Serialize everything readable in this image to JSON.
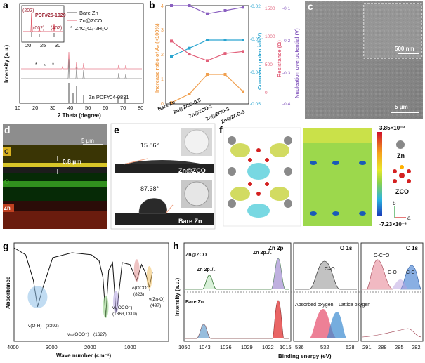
{
  "panel_letters": {
    "a": "a",
    "b": "b",
    "c": "c",
    "d": "d",
    "e": "e",
    "f": "f",
    "g": "g",
    "h": "h"
  },
  "panel_a": {
    "xlabel": "2 Theta (degree)",
    "ylabel": "Intensity (a.u.)",
    "xticks": [
      "10",
      "20",
      "30",
      "40",
      "50",
      "60",
      "70",
      "80"
    ],
    "legend": [
      "Bare Zn",
      "Zn@ZCO",
      "ZnC₂O₄·2H₂O"
    ],
    "legend_marker": "*",
    "ref_label": "Zn PDF#04-0831",
    "inset_pdf": "PDF#25-1029",
    "inset_peaks": [
      "(202)",
      "(002)",
      "(402)"
    ],
    "inset_ticks": [
      "20",
      "25",
      "30"
    ]
  },
  "panel_b": {
    "ylabel_left": "Increase ratio of Aₑ (×100%)",
    "ylabel_right1": "Corrosion potential (V)",
    "ylabel_right2": "Resistance (Ω)",
    "ylabel_right3": "Nucleation overpotential (V)",
    "left_ticks": [
      "0",
      "1",
      "2",
      "3",
      "4"
    ],
    "r1_ticks": [
      "-0.02",
      "-0.03",
      "-0.04",
      "-0.05"
    ],
    "r2_ticks": [
      "1500",
      "1000",
      "500",
      "0"
    ],
    "r3_ticks": [
      "-0.1",
      "-0.2",
      "-0.3",
      "-0.4"
    ],
    "categories": [
      "Bare Zn",
      "Zn@ZCO-0.5",
      "Zn@ZCO-1",
      "Zn@ZCO-3",
      "Zn@ZCO-5"
    ]
  },
  "panel_c": {
    "scale_inset": "500 nm",
    "scale_main": "5 μm"
  },
  "panel_d": {
    "scale": "5 μm",
    "thickness": "0.8 μm",
    "elements": [
      "C",
      "O",
      "Zn"
    ]
  },
  "panel_e": {
    "angle_top": "15.86°",
    "label_top": "Zn@ZCO",
    "angle_bottom": "87.38°",
    "label_bottom": "Bare Zn"
  },
  "panel_f": {
    "max": "3.85×10⁻³",
    "min": "-7.23×10⁻³",
    "zn_label": "Zn",
    "zco_label": "ZCO",
    "axis_b": "b",
    "axis_a": "a"
  },
  "panel_g": {
    "ylabel": "Absorbance",
    "xlabel": "Wave number (cm⁻¹)",
    "xticks": [
      "4000",
      "3000",
      "2000",
      "1000"
    ],
    "ann": [
      {
        "name": "ν(O-H)",
        "val": "(3392)"
      },
      {
        "name": "νₐₛ(OCO⁻)",
        "val": "(1627)"
      },
      {
        "name": "νₛ(OCO⁻)",
        "val": "(1363,1319)"
      },
      {
        "name": "δ(OCO⁻)",
        "val": "(823)"
      },
      {
        "name": "ν(Zn-O)",
        "val": "(497)"
      }
    ]
  },
  "panel_h": {
    "ylabel": "Intensity (a.u.)",
    "xlabel": "Binding energy (eV)",
    "titles": [
      "Zn 2p",
      "O 1s",
      "C 1s"
    ],
    "zn_xticks": [
      "1050",
      "1043",
      "1036",
      "1029",
      "1022",
      "1015"
    ],
    "o_xticks": [
      "536",
      "532",
      "528"
    ],
    "c_xticks": [
      "291",
      "288",
      "285",
      "282"
    ],
    "labels": {
      "top": "Zn@ZCO",
      "bottom": "Bare Zn",
      "zn2p12": "Zn 2p₁/₂",
      "zn2p32": "Zn 2p₃/₂",
      "co": "C=O",
      "abs": "Absorbed oxygen",
      "lat": "Lattice oxygen",
      "oco": "O-C=O",
      "c_o": "C-O",
      "cc": "C-C"
    }
  },
  "chart_data": [
    {
      "type": "line",
      "title": "",
      "xlabel": "",
      "ylabel": "Increase ratio of Aₑ (×100%)",
      "categories": [
        "Bare Zn",
        "Zn@ZCO-0.5",
        "Zn@ZCO-1",
        "Zn@ZCO-3",
        "Zn@ZCO-5"
      ],
      "series": [
        {
          "name": "Increase ratio",
          "axis": "left",
          "ylim": [
            0,
            4
          ],
          "values": [
            0.05,
            0.4,
            1.2,
            1.2,
            0.5
          ]
        },
        {
          "name": "Corrosion potential",
          "axis": "right1",
          "ylim": [
            -0.05,
            -0.02
          ],
          "values": [
            -0.0355,
            -0.033,
            -0.0305,
            -0.0305,
            -0.0305
          ]
        },
        {
          "name": "Resistance",
          "axis": "right2",
          "ylim": [
            0,
            1500
          ],
          "values": [
            960,
            760,
            660,
            770,
            800
          ]
        },
        {
          "name": "Nucleation overpotential",
          "axis": "right3",
          "ylim": [
            -0.4,
            -0.1
          ],
          "values": [
            -0.1,
            -0.1,
            -0.125,
            -0.115,
            -0.105
          ]
        }
      ]
    },
    {
      "type": "line",
      "title": "",
      "xlabel": "Wave number (cm⁻¹)",
      "ylabel": "Absorbance",
      "xlim": [
        4000,
        0
      ],
      "x": [
        4000,
        3700,
        3500,
        3392,
        3250,
        3000,
        2500,
        2000,
        1800,
        1700,
        1627,
        1550,
        1450,
        1363,
        1319,
        1200,
        1000,
        823,
        700,
        600,
        497,
        420
      ],
      "values": [
        0.95,
        0.88,
        0.62,
        0.35,
        0.55,
        0.85,
        0.9,
        0.88,
        0.82,
        0.65,
        0.25,
        0.72,
        0.8,
        0.3,
        0.38,
        0.8,
        0.78,
        0.62,
        0.78,
        0.7,
        0.55,
        0.7
      ]
    }
  ]
}
